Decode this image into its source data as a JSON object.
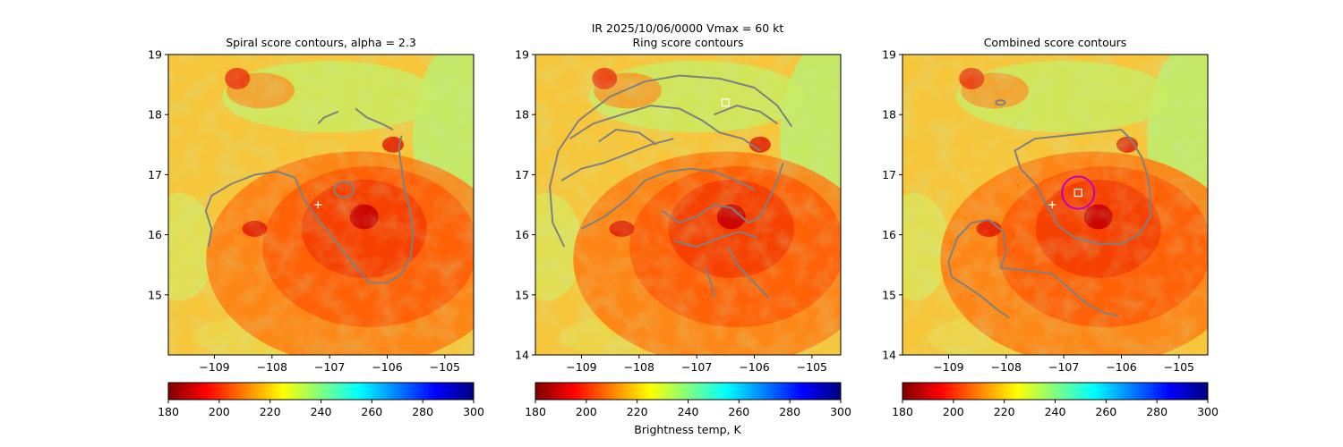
{
  "suptitle": {
    "line1": "IR  2025/10/06/0000    Vmax = 60 kt"
  },
  "colorbar": {
    "label": "Brightness temp, K",
    "min": 180,
    "max": 300,
    "ticks": [
      "180",
      "200",
      "220",
      "240",
      "260",
      "280",
      "300"
    ],
    "colors": [
      "#7f0000",
      "#ff0000",
      "#ff8000",
      "#ffff00",
      "#80ff80",
      "#00ffff",
      "#0080ff",
      "#0000ff",
      "#00007f"
    ]
  },
  "colors": {
    "contour": "#808080",
    "ring_marker": "#c000c0",
    "center_marker": "#ffffff"
  },
  "chart_data": [
    {
      "type": "heatmap",
      "title": "Spiral score contours, alpha =  2.3",
      "xlim": [
        -109.8,
        -104.5
      ],
      "ylim": [
        14.0,
        19.0
      ],
      "xticks": [
        "−109",
        "−108",
        "−107",
        "−106",
        "−105"
      ],
      "yticks": [
        "15",
        "16",
        "17",
        "18",
        "19"
      ],
      "first_guess_center": [
        -107.2,
        16.5
      ],
      "contours": [
        [
          [
            -109.1,
            15.8
          ],
          [
            -109.05,
            16.1
          ],
          [
            -109.15,
            16.4
          ],
          [
            -109.05,
            16.65
          ],
          [
            -108.7,
            16.85
          ],
          [
            -108.3,
            17.0
          ],
          [
            -107.9,
            17.05
          ],
          [
            -107.6,
            16.95
          ],
          [
            -107.45,
            16.6
          ],
          [
            -107.2,
            16.25
          ],
          [
            -106.95,
            15.95
          ],
          [
            -106.7,
            15.65
          ],
          [
            -106.5,
            15.4
          ],
          [
            -106.3,
            15.2
          ],
          [
            -106.0,
            15.2
          ],
          [
            -105.75,
            15.35
          ],
          [
            -105.6,
            15.6
          ],
          [
            -105.55,
            16.0
          ],
          [
            -105.6,
            16.4
          ],
          [
            -105.7,
            16.75
          ],
          [
            -105.75,
            17.1
          ],
          [
            -105.8,
            17.45
          ],
          [
            -105.75,
            17.65
          ]
        ],
        [
          [
            -107.2,
            17.85
          ],
          [
            -107.1,
            17.95
          ],
          [
            -106.85,
            18.05
          ]
        ],
        [
          [
            -106.55,
            18.1
          ],
          [
            -106.35,
            17.95
          ],
          [
            -106.1,
            17.85
          ],
          [
            -105.9,
            17.75
          ]
        ]
      ],
      "closed_contours": [
        {
          "center": [
            -106.75,
            16.75
          ],
          "radius": [
            0.17,
            0.13
          ]
        }
      ]
    },
    {
      "type": "heatmap",
      "title": "Ring score contours",
      "xlim": [
        -109.8,
        -104.5
      ],
      "ylim": [
        14.0,
        19.0
      ],
      "xticks": [
        "−109",
        "−108",
        "−107",
        "−106",
        "−105"
      ],
      "yticks": [
        "14",
        "15",
        "16",
        "17",
        "18",
        "19"
      ],
      "best_ring_center": [
        -106.5,
        18.2
      ],
      "contours": [
        [
          [
            -109.3,
            15.8
          ],
          [
            -109.5,
            16.2
          ],
          [
            -109.55,
            16.8
          ],
          [
            -109.4,
            17.4
          ],
          [
            -109.05,
            17.9
          ],
          [
            -108.5,
            18.3
          ],
          [
            -107.9,
            18.55
          ],
          [
            -107.3,
            18.65
          ],
          [
            -106.6,
            18.6
          ],
          [
            -106.0,
            18.45
          ],
          [
            -105.6,
            18.15
          ],
          [
            -105.35,
            17.8
          ]
        ],
        [
          [
            -109.2,
            17.6
          ],
          [
            -108.8,
            17.85
          ],
          [
            -108.3,
            18.0
          ],
          [
            -107.8,
            18.15
          ],
          [
            -107.3,
            18.1
          ],
          [
            -106.9,
            17.9
          ],
          [
            -106.6,
            17.7
          ],
          [
            -106.2,
            17.6
          ],
          [
            -105.9,
            17.4
          ]
        ],
        [
          [
            -109.35,
            16.9
          ],
          [
            -109.0,
            17.1
          ],
          [
            -108.6,
            17.2
          ],
          [
            -108.2,
            17.35
          ],
          [
            -107.8,
            17.5
          ],
          [
            -107.4,
            17.6
          ]
        ],
        [
          [
            -109.0,
            16.1
          ],
          [
            -108.6,
            16.3
          ],
          [
            -108.2,
            16.6
          ],
          [
            -107.9,
            16.9
          ],
          [
            -107.5,
            17.05
          ],
          [
            -107.1,
            17.1
          ],
          [
            -106.7,
            17.05
          ],
          [
            -106.3,
            16.9
          ],
          [
            -106.0,
            16.75
          ]
        ],
        [
          [
            -107.6,
            16.4
          ],
          [
            -107.3,
            16.2
          ],
          [
            -107.0,
            16.3
          ],
          [
            -106.7,
            16.5
          ],
          [
            -106.4,
            16.45
          ],
          [
            -106.1,
            16.2
          ],
          [
            -105.9,
            16.3
          ],
          [
            -105.75,
            16.6
          ],
          [
            -105.6,
            16.9
          ],
          [
            -105.5,
            17.2
          ]
        ],
        [
          [
            -107.4,
            15.9
          ],
          [
            -107.0,
            15.8
          ],
          [
            -106.6,
            15.95
          ],
          [
            -106.25,
            16.05
          ],
          [
            -105.95,
            15.95
          ]
        ],
        [
          [
            -106.45,
            15.8
          ],
          [
            -106.3,
            15.5
          ],
          [
            -106.1,
            15.3
          ],
          [
            -105.9,
            15.1
          ],
          [
            -105.75,
            14.95
          ]
        ],
        [
          [
            -106.85,
            15.45
          ],
          [
            -106.75,
            15.2
          ],
          [
            -106.7,
            14.95
          ]
        ],
        [
          [
            -108.7,
            17.55
          ],
          [
            -108.4,
            17.75
          ],
          [
            -108.0,
            17.7
          ],
          [
            -107.7,
            17.5
          ]
        ],
        [
          [
            -106.7,
            18.0
          ],
          [
            -106.3,
            18.15
          ],
          [
            -105.9,
            18.05
          ],
          [
            -105.6,
            17.85
          ]
        ]
      ],
      "closed_contours": []
    },
    {
      "type": "heatmap",
      "title": "Combined score contours",
      "xlim": [
        -109.8,
        -104.5
      ],
      "ylim": [
        14.0,
        19.0
      ],
      "xticks": [
        "−109",
        "−108",
        "−107",
        "−106",
        "−105"
      ],
      "yticks": [
        "14",
        "15",
        "16",
        "17",
        "18",
        "19"
      ],
      "first_guess_center": [
        -107.2,
        16.5
      ],
      "best_ring_center": [
        -106.75,
        16.7
      ],
      "ring_radius_deg": 0.28,
      "contours": [
        [
          [
            -106.0,
            17.75
          ],
          [
            -106.5,
            17.7
          ],
          [
            -107.0,
            17.65
          ],
          [
            -107.5,
            17.6
          ],
          [
            -107.85,
            17.4
          ],
          [
            -107.75,
            17.1
          ],
          [
            -107.5,
            16.85
          ],
          [
            -107.3,
            16.5
          ],
          [
            -107.1,
            16.15
          ],
          [
            -106.8,
            15.95
          ],
          [
            -106.4,
            15.85
          ],
          [
            -106.0,
            15.85
          ],
          [
            -105.7,
            16.0
          ],
          [
            -105.5,
            16.3
          ],
          [
            -105.5,
            16.7
          ],
          [
            -105.55,
            17.0
          ],
          [
            -105.65,
            17.3
          ],
          [
            -105.85,
            17.6
          ],
          [
            -106.0,
            17.75
          ]
        ],
        [
          [
            -108.3,
            16.25
          ],
          [
            -108.6,
            16.2
          ],
          [
            -108.85,
            15.95
          ],
          [
            -109.0,
            15.55
          ],
          [
            -108.95,
            15.3
          ],
          [
            -108.7,
            15.15
          ],
          [
            -108.4,
            14.95
          ],
          [
            -108.15,
            14.75
          ],
          [
            -107.95,
            14.62
          ]
        ],
        [
          [
            -108.3,
            16.25
          ],
          [
            -108.05,
            16.05
          ],
          [
            -108.0,
            15.7
          ],
          [
            -108.1,
            15.45
          ],
          [
            -107.6,
            15.4
          ],
          [
            -107.2,
            15.35
          ],
          [
            -106.9,
            15.1
          ],
          [
            -106.6,
            14.85
          ],
          [
            -106.3,
            14.7
          ],
          [
            -106.05,
            14.65
          ]
        ]
      ],
      "closed_contours": [
        {
          "center": [
            -108.1,
            18.2
          ],
          "radius": [
            0.08,
            0.04
          ]
        }
      ]
    }
  ]
}
